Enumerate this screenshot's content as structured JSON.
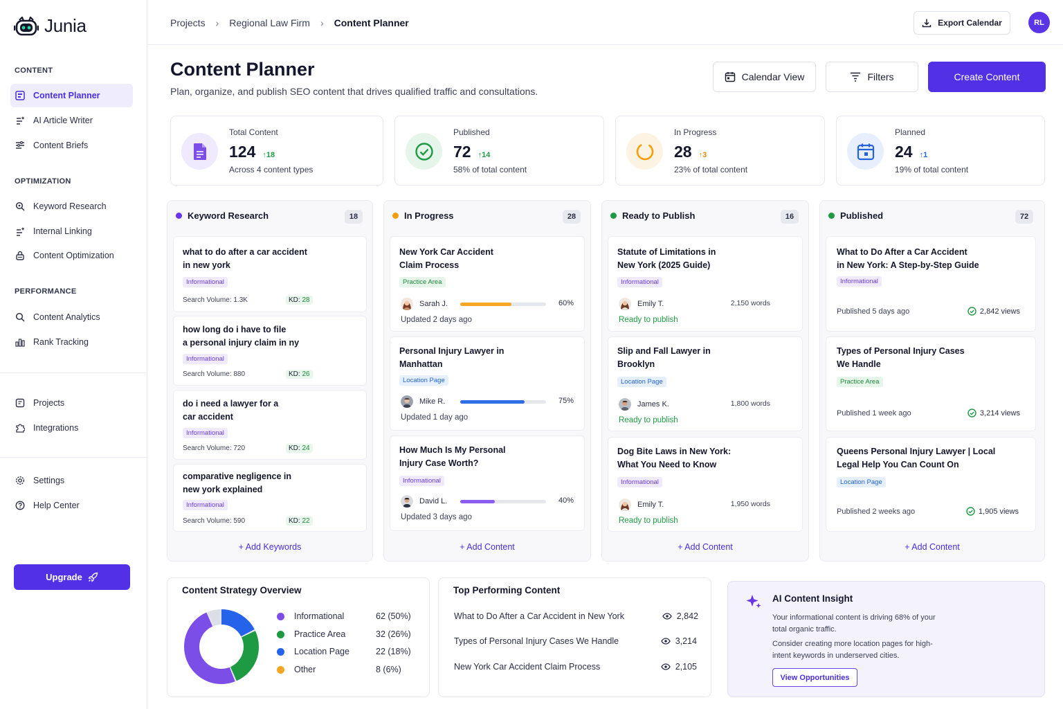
{
  "app": {
    "name": "Junia"
  },
  "sidebar": {
    "sections": [
      {
        "title": "CONTENT"
      },
      {
        "title": "OPTIMIZATION"
      },
      {
        "title": "PERFORMANCE"
      }
    ],
    "items": [
      {
        "label": "Content Planner"
      },
      {
        "label": "AI Article Writer"
      },
      {
        "label": "Content Briefs"
      },
      {
        "label": "Keyword Research"
      },
      {
        "label": "Internal Linking"
      },
      {
        "label": "Content Optimization"
      },
      {
        "label": "Content Analytics"
      },
      {
        "label": "Rank Tracking"
      },
      {
        "label": "Projects"
      },
      {
        "label": "Integrations"
      },
      {
        "label": "Settings"
      },
      {
        "label": "Help Center"
      }
    ],
    "upgrade_label": "Upgrade"
  },
  "header": {
    "breadcrumbs": [
      "Projects",
      "Regional Law Firm",
      "Content Planner"
    ],
    "export_label": "Export Calendar",
    "avatar_initials": "RL"
  },
  "page": {
    "title": "Content Planner",
    "subtitle": "Plan, organize, and publish SEO content that drives qualified traffic and consultations.",
    "calendar_view_label": "Calendar View",
    "filters_label": "Filters",
    "create_label": "Create Content"
  },
  "stats": [
    {
      "label": "Total Content",
      "value": "124",
      "delta": "18",
      "desc": "Across 4 content types",
      "color": "#7c4ee8"
    },
    {
      "label": "Published",
      "value": "72",
      "delta": "14",
      "desc": "58% of total content",
      "color": "#1e9a42"
    },
    {
      "label": "In Progress",
      "value": "28",
      "delta": "3",
      "desc": "23% of total content",
      "color": "#f59e0b"
    },
    {
      "label": "Planned",
      "value": "24",
      "delta": "1",
      "desc": "19% of total content",
      "color": "#2563d8"
    }
  ],
  "columns": [
    {
      "title": "Keyword Research",
      "count": "18",
      "color": "#6a35e6",
      "add_label": "+ Add Keywords",
      "cards": [
        {
          "title": "what to do after a car accident",
          "title2": "in new york",
          "tag": "Informational",
          "volume": "Search Volume: 1.3K",
          "kd_label": "KD:",
          "kd": "28"
        },
        {
          "title": "how long do i have to file",
          "title2": "a personal injury claim in ny",
          "tag": "Informational",
          "volume": "Search Volume: 880",
          "kd_label": "KD:",
          "kd": "26"
        },
        {
          "title": "do i need a lawyer for a",
          "title2": "car accident",
          "tag": "Informational",
          "volume": "Search Volume: 720",
          "kd_label": "KD:",
          "kd": "24"
        },
        {
          "title": "comparative negligence in",
          "title2": "new york explained",
          "tag": "Informational",
          "volume": "Search Volume: 590",
          "kd_label": "KD:",
          "kd": "22"
        }
      ]
    },
    {
      "title": "In Progress",
      "count": "28",
      "color": "#f59e0b",
      "add_label": "+ Add Content",
      "cards": [
        {
          "title": "New York Car Accident",
          "title2": "Claim Process",
          "tag": "Practice Area",
          "author": "Sarah J.",
          "progress": 60,
          "pct": "60%",
          "updated": "Updated 2 days ago",
          "bar_color": "#f6a723"
        },
        {
          "title": "Personal Injury Lawyer in",
          "title2": "Manhattan",
          "tag": "Location Page",
          "author": "Mike R.",
          "progress": 75,
          "pct": "75%",
          "updated": "Updated 1 day ago",
          "bar_color": "#2f6fe6"
        },
        {
          "title": "How Much Is My Personal",
          "title2": "Injury Case Worth?",
          "tag": "Informational",
          "author": "David L.",
          "progress": 40,
          "pct": "40%",
          "updated": "Updated 3 days ago",
          "bar_color": "#8a5cf0"
        }
      ]
    },
    {
      "title": "Ready to Publish",
      "count": "16",
      "color": "#1e9a42",
      "add_label": "+ Add Content",
      "cards": [
        {
          "title": "Statute of Limitations in",
          "title2": "New York (2025 Guide)",
          "tag": "Informational",
          "author": "Emily T.",
          "words": "2,150 words",
          "status": "Ready to publish"
        },
        {
          "title": "Slip and Fall Lawyer in",
          "title2": "Brooklyn",
          "tag": "Location Page",
          "author": "James K.",
          "words": "1,800 words",
          "status": "Ready to publish"
        },
        {
          "title": "Dog Bite Laws in New York:",
          "title2": "What You Need to Know",
          "tag": "Informational",
          "author": "Emily T.",
          "words": "1,950 words",
          "status": "Ready to publish"
        }
      ]
    },
    {
      "title": "Published",
      "count": "72",
      "color": "#1e9a42",
      "add_label": "+ Add Content",
      "cards": [
        {
          "title": "What to Do After a Car Accident",
          "title2": "in New York: A Step-by-Step Guide",
          "tag": "Informational",
          "published": "Published 5 days ago",
          "views": "2,842 views"
        },
        {
          "title": "Types of Personal Injury Cases",
          "title2": "We Handle",
          "tag": "Practice Area",
          "published": "Published 1 week ago",
          "views": "3,214 views"
        },
        {
          "title": "Queens Personal Injury Lawyer | Local",
          "title2": "Legal Help You Can Count On",
          "tag": "Location Page",
          "published": "Published 2 weeks ago",
          "views": "1,905 views"
        }
      ]
    }
  ],
  "strategy": {
    "title": "Content Strategy Overview",
    "items": [
      {
        "label": "Informational",
        "value": "62 (50%)",
        "pct": 50,
        "color": "#7c4ee8"
      },
      {
        "label": "Practice Area",
        "value": "32 (26%)",
        "pct": 26,
        "color": "#1e9a42"
      },
      {
        "label": "Location Page",
        "value": "22 (18%)",
        "pct": 18,
        "color": "#2563eb"
      },
      {
        "label": "Other",
        "value": "8 (6%)",
        "pct": 6,
        "color": "#f5a524"
      }
    ]
  },
  "top_content": {
    "title": "Top Performing Content",
    "rows": [
      {
        "title": "What to Do After a Car Accident in New York",
        "views": "2,842"
      },
      {
        "title": "Types of Personal Injury Cases We Handle",
        "views": "3,214"
      },
      {
        "title": "New York Car Accident Claim Process",
        "views": "2,105"
      }
    ]
  },
  "insight": {
    "title": "AI Content Insight",
    "p1a": "Your informational content is driving 68% of your",
    "p1b": "total organic traffic.",
    "p2a": "Consider creating more location pages for high-",
    "p2b": "intent keywords in underserved cities.",
    "button": "View Opportunities"
  }
}
